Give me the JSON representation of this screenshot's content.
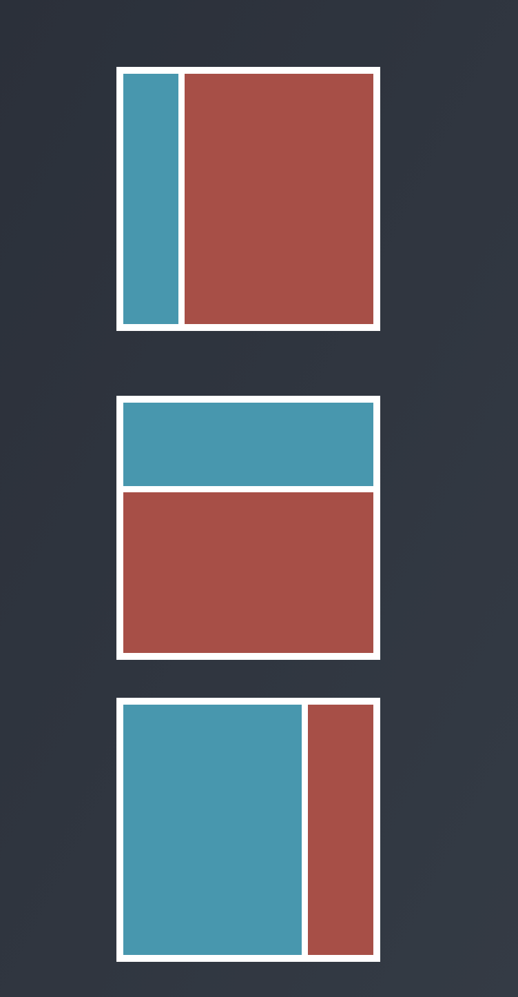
{
  "colors": {
    "background_start": "#2b303a",
    "background_end": "#343b45",
    "frame": "#ffffff",
    "blue": "#4897ae",
    "red": "#a74f47"
  },
  "layouts": [
    {
      "id": "layout-1",
      "orientation": "row",
      "panels": [
        {
          "name": "blue-panel",
          "color": "blue",
          "fraction": 0.22
        },
        {
          "name": "red-panel",
          "color": "red",
          "fraction": 0.78
        }
      ]
    },
    {
      "id": "layout-2",
      "orientation": "column",
      "panels": [
        {
          "name": "blue-panel",
          "color": "blue",
          "fraction": 0.34
        },
        {
          "name": "red-panel",
          "color": "red",
          "fraction": 0.66
        }
      ]
    },
    {
      "id": "layout-3",
      "orientation": "row",
      "panels": [
        {
          "name": "blue-panel",
          "color": "blue",
          "fraction": 0.73
        },
        {
          "name": "red-panel",
          "color": "red",
          "fraction": 0.27
        }
      ]
    }
  ]
}
